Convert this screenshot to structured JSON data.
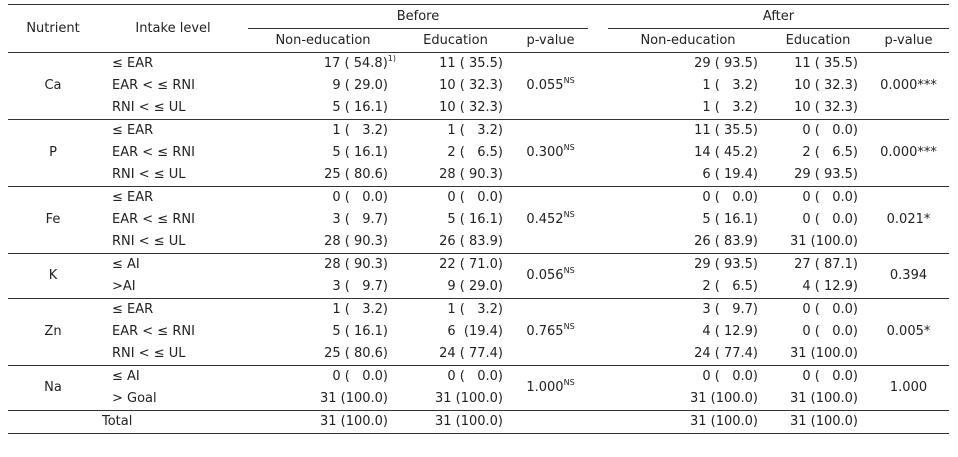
{
  "header": {
    "nutrient": "Nutrient",
    "intake_level": "Intake level",
    "before": "Before",
    "after": "After",
    "non_education": "Non-education",
    "education": "Education",
    "p_value": "p-value"
  },
  "groups": [
    {
      "nutrient": "Ca",
      "p_before": "0.055",
      "p_before_sup": "NS",
      "p_after": "0.000***",
      "p_after_sup": "",
      "rows": [
        {
          "level": "≤ EAR",
          "b_non": "17 ( 54.8)",
          "b_non_sup": "1)",
          "b_edu": "11 ( 35.5)",
          "a_non": "29 ( 93.5)",
          "a_edu": "11 ( 35.5)"
        },
        {
          "level": "EAR < ≤ RNI",
          "b_non": "9 ( 29.0)",
          "b_non_sup": "",
          "b_edu": "10 ( 32.3)",
          "a_non": "1 (   3.2)",
          "a_edu": "10 ( 32.3)"
        },
        {
          "level": "RNI < ≤ UL",
          "b_non": "5 ( 16.1)",
          "b_non_sup": "",
          "b_edu": "10 ( 32.3)",
          "a_non": "1 (   3.2)",
          "a_edu": "10 ( 32.3)"
        }
      ]
    },
    {
      "nutrient": "P",
      "p_before": "0.300",
      "p_before_sup": "NS",
      "p_after": "0.000***",
      "p_after_sup": "",
      "rows": [
        {
          "level": "≤ EAR",
          "b_non": "1 (   3.2)",
          "b_non_sup": "",
          "b_edu": "1 (   3.2)",
          "a_non": "11 ( 35.5)",
          "a_edu": "0 (   0.0)"
        },
        {
          "level": "EAR < ≤ RNI",
          "b_non": "5 ( 16.1)",
          "b_non_sup": "",
          "b_edu": "2 (   6.5)",
          "a_non": "14 ( 45.2)",
          "a_edu": "2 (   6.5)"
        },
        {
          "level": "RNI < ≤ UL",
          "b_non": "25 ( 80.6)",
          "b_non_sup": "",
          "b_edu": "28 ( 90.3)",
          "a_non": "6 ( 19.4)",
          "a_edu": "29 ( 93.5)"
        }
      ]
    },
    {
      "nutrient": "Fe",
      "p_before": "0.452",
      "p_before_sup": "NS",
      "p_after": "0.021*",
      "p_after_sup": "",
      "rows": [
        {
          "level": "≤ EAR",
          "b_non": "0 (   0.0)",
          "b_non_sup": "",
          "b_edu": "0 (   0.0)",
          "a_non": "0 (   0.0)",
          "a_edu": "0 (   0.0)"
        },
        {
          "level": "EAR < ≤ RNI",
          "b_non": "3 (   9.7)",
          "b_non_sup": "",
          "b_edu": "5 ( 16.1)",
          "a_non": "5 ( 16.1)",
          "a_edu": "0 (   0.0)"
        },
        {
          "level": "RNI < ≤ UL",
          "b_non": "28 ( 90.3)",
          "b_non_sup": "",
          "b_edu": "26 ( 83.9)",
          "a_non": "26 ( 83.9)",
          "a_edu": "31 (100.0)"
        }
      ]
    },
    {
      "nutrient": "K",
      "p_before": "0.056",
      "p_before_sup": "NS",
      "p_after": "0.394",
      "p_after_sup": "",
      "rows": [
        {
          "level": "≤ AI",
          "b_non": "28 ( 90.3)",
          "b_non_sup": "",
          "b_edu": "22 ( 71.0)",
          "a_non": "29 ( 93.5)",
          "a_edu": "27 ( 87.1)"
        },
        {
          "level": ">AI",
          "b_non": "3 (   9.7)",
          "b_non_sup": "",
          "b_edu": "9 ( 29.0)",
          "a_non": "2 (   6.5)",
          "a_edu": "4 ( 12.9)"
        }
      ]
    },
    {
      "nutrient": "Zn",
      "p_before": "0.765",
      "p_before_sup": "NS",
      "p_after": "0.005*",
      "p_after_sup": "",
      "rows": [
        {
          "level": "≤ EAR",
          "b_non": "1 (   3.2)",
          "b_non_sup": "",
          "b_edu": "1 (   3.2)",
          "a_non": "3 (   9.7)",
          "a_edu": "0 (   0.0)"
        },
        {
          "level": "EAR < ≤ RNI",
          "b_non": "5 ( 16.1)",
          "b_non_sup": "",
          "b_edu": "6  (19.4)",
          "a_non": "4 ( 12.9)",
          "a_edu": "0 (   0.0)"
        },
        {
          "level": "RNI < ≤ UL",
          "b_non": "25 ( 80.6)",
          "b_non_sup": "",
          "b_edu": "24 ( 77.4)",
          "a_non": "24 ( 77.4)",
          "a_edu": "31 (100.0)"
        }
      ]
    },
    {
      "nutrient": "Na",
      "p_before": "1.000",
      "p_before_sup": "NS",
      "p_after": "1.000",
      "p_after_sup": "",
      "rows": [
        {
          "level": "≤ AI",
          "b_non": "0 (   0.0)",
          "b_non_sup": "",
          "b_edu": "0 (   0.0)",
          "a_non": "0 (   0.0)",
          "a_edu": "0 (   0.0)"
        },
        {
          "level": "> Goal",
          "b_non": "31 (100.0)",
          "b_non_sup": "",
          "b_edu": "31 (100.0)",
          "a_non": "31 (100.0)",
          "a_edu": "31 (100.0)"
        }
      ]
    }
  ],
  "total": {
    "label": "Total",
    "b_non": "31 (100.0)",
    "b_edu": "31 (100.0)",
    "a_non": "31 (100.0)",
    "a_edu": "31 (100.0)"
  }
}
